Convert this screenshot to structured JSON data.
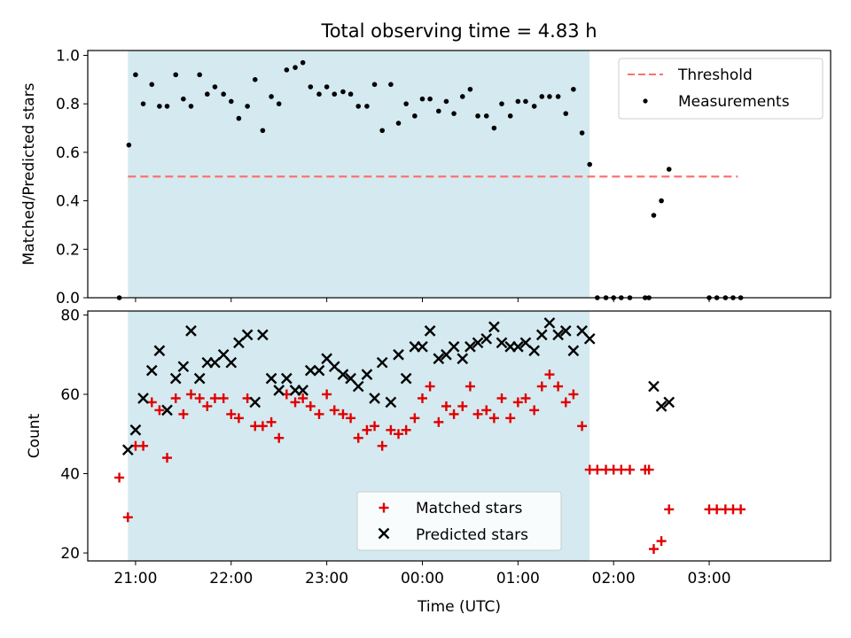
{
  "title": "Total observing time = 4.83 h",
  "colors": {
    "shade": "#d4eaf0",
    "threshold": "#ff7070",
    "measurements": "#000000",
    "matched": "#e00000",
    "predicted": "#000000"
  },
  "x_ticks": [
    {
      "t": 21,
      "label": "21:00"
    },
    {
      "t": 22,
      "label": "22:00"
    },
    {
      "t": 23,
      "label": "23:00"
    },
    {
      "t": 24,
      "label": "00:00"
    },
    {
      "t": 25,
      "label": "01:00"
    },
    {
      "t": 26,
      "label": "02:00"
    },
    {
      "t": 27,
      "label": "03:00"
    }
  ],
  "chart_data": [
    {
      "type": "scatter",
      "ylabel": "Matched/Predicted stars",
      "xlim_hours": [
        20.5,
        28.27
      ],
      "ylim": [
        0,
        1.02
      ],
      "y_ticks": [
        "0.0",
        "0.2",
        "0.4",
        "0.6",
        "0.8",
        "1.0"
      ],
      "shaded_span_hours": [
        20.92,
        25.75
      ],
      "legend": {
        "position": "upper-right",
        "threshold_label": "Threshold",
        "measurements_label": "Measurements"
      },
      "threshold": {
        "value": 0.5,
        "x_hours": [
          20.92,
          27.3
        ]
      },
      "measurements_hours": [
        [
          20.83,
          0.0
        ],
        [
          20.93,
          0.63
        ],
        [
          21.0,
          0.92
        ],
        [
          21.08,
          0.8
        ],
        [
          21.17,
          0.88
        ],
        [
          21.25,
          0.79
        ],
        [
          21.33,
          0.79
        ],
        [
          21.42,
          0.92
        ],
        [
          21.5,
          0.82
        ],
        [
          21.58,
          0.79
        ],
        [
          21.67,
          0.92
        ],
        [
          21.75,
          0.84
        ],
        [
          21.83,
          0.87
        ],
        [
          21.92,
          0.84
        ],
        [
          22.0,
          0.81
        ],
        [
          22.08,
          0.74
        ],
        [
          22.17,
          0.79
        ],
        [
          22.25,
          0.9
        ],
        [
          22.33,
          0.69
        ],
        [
          22.42,
          0.83
        ],
        [
          22.5,
          0.8
        ],
        [
          22.58,
          0.94
        ],
        [
          22.67,
          0.95
        ],
        [
          22.75,
          0.97
        ],
        [
          22.83,
          0.87
        ],
        [
          22.92,
          0.84
        ],
        [
          23.0,
          0.87
        ],
        [
          23.08,
          0.84
        ],
        [
          23.17,
          0.85
        ],
        [
          23.25,
          0.84
        ],
        [
          23.33,
          0.79
        ],
        [
          23.42,
          0.79
        ],
        [
          23.5,
          0.88
        ],
        [
          23.58,
          0.69
        ],
        [
          23.67,
          0.88
        ],
        [
          23.75,
          0.72
        ],
        [
          23.83,
          0.8
        ],
        [
          23.92,
          0.75
        ],
        [
          24.0,
          0.82
        ],
        [
          24.08,
          0.82
        ],
        [
          24.17,
          0.77
        ],
        [
          24.25,
          0.81
        ],
        [
          24.33,
          0.76
        ],
        [
          24.42,
          0.83
        ],
        [
          24.5,
          0.86
        ],
        [
          24.58,
          0.75
        ],
        [
          24.67,
          0.75
        ],
        [
          24.75,
          0.7
        ],
        [
          24.83,
          0.8
        ],
        [
          24.92,
          0.75
        ],
        [
          25.0,
          0.81
        ],
        [
          25.08,
          0.81
        ],
        [
          25.17,
          0.79
        ],
        [
          25.25,
          0.83
        ],
        [
          25.33,
          0.83
        ],
        [
          25.42,
          0.83
        ],
        [
          25.5,
          0.76
        ],
        [
          25.58,
          0.86
        ],
        [
          25.67,
          0.68
        ],
        [
          25.75,
          0.55
        ],
        [
          25.83,
          0.0
        ],
        [
          25.92,
          0.0
        ],
        [
          26.0,
          0.0
        ],
        [
          26.08,
          0.0
        ],
        [
          26.17,
          0.0
        ],
        [
          26.33,
          0.0
        ],
        [
          26.37,
          0.0
        ],
        [
          26.42,
          0.34
        ],
        [
          26.5,
          0.4
        ],
        [
          26.58,
          0.53
        ],
        [
          27.0,
          0.0
        ],
        [
          27.08,
          0.0
        ],
        [
          27.17,
          0.0
        ],
        [
          27.25,
          0.0
        ],
        [
          27.33,
          0.0
        ]
      ]
    },
    {
      "type": "scatter",
      "xlabel": "Time (UTC)",
      "ylabel": "Count",
      "xlim_hours": [
        20.5,
        28.27
      ],
      "ylim": [
        18,
        81
      ],
      "y_ticks": [
        "20",
        "40",
        "60",
        "80"
      ],
      "shaded_span_hours": [
        20.92,
        25.75
      ],
      "legend": {
        "position": "lower-center"
      },
      "series": [
        {
          "name": "Matched stars",
          "marker": "plus",
          "points_hours": [
            [
              20.83,
              39
            ],
            [
              20.92,
              29
            ],
            [
              21.0,
              47
            ],
            [
              21.08,
              47
            ],
            [
              21.17,
              58
            ],
            [
              21.25,
              56
            ],
            [
              21.33,
              44
            ],
            [
              21.42,
              59
            ],
            [
              21.5,
              55
            ],
            [
              21.58,
              60
            ],
            [
              21.67,
              59
            ],
            [
              21.75,
              57
            ],
            [
              21.83,
              59
            ],
            [
              21.92,
              59
            ],
            [
              22.0,
              55
            ],
            [
              22.08,
              54
            ],
            [
              22.17,
              59
            ],
            [
              22.25,
              52
            ],
            [
              22.33,
              52
            ],
            [
              22.42,
              53
            ],
            [
              22.5,
              49
            ],
            [
              22.58,
              60
            ],
            [
              22.67,
              58
            ],
            [
              22.75,
              59
            ],
            [
              22.83,
              57
            ],
            [
              22.92,
              55
            ],
            [
              23.0,
              60
            ],
            [
              23.08,
              56
            ],
            [
              23.17,
              55
            ],
            [
              23.25,
              54
            ],
            [
              23.33,
              49
            ],
            [
              23.42,
              51
            ],
            [
              23.5,
              52
            ],
            [
              23.58,
              47
            ],
            [
              23.67,
              51
            ],
            [
              23.75,
              50
            ],
            [
              23.83,
              51
            ],
            [
              23.92,
              54
            ],
            [
              24.0,
              59
            ],
            [
              24.08,
              62
            ],
            [
              24.17,
              53
            ],
            [
              24.25,
              57
            ],
            [
              24.33,
              55
            ],
            [
              24.42,
              57
            ],
            [
              24.5,
              62
            ],
            [
              24.58,
              55
            ],
            [
              24.67,
              56
            ],
            [
              24.75,
              54
            ],
            [
              24.83,
              59
            ],
            [
              24.92,
              54
            ],
            [
              25.0,
              58
            ],
            [
              25.08,
              59
            ],
            [
              25.17,
              56
            ],
            [
              25.25,
              62
            ],
            [
              25.33,
              65
            ],
            [
              25.42,
              62
            ],
            [
              25.5,
              58
            ],
            [
              25.58,
              60
            ],
            [
              25.67,
              52
            ],
            [
              25.75,
              41
            ],
            [
              25.83,
              41
            ],
            [
              25.92,
              41
            ],
            [
              26.0,
              41
            ],
            [
              26.08,
              41
            ],
            [
              26.17,
              41
            ],
            [
              26.33,
              41
            ],
            [
              26.37,
              41
            ],
            [
              26.42,
              21
            ],
            [
              26.5,
              23
            ],
            [
              26.58,
              31
            ],
            [
              27.0,
              31
            ],
            [
              27.08,
              31
            ],
            [
              27.17,
              31
            ],
            [
              27.25,
              31
            ],
            [
              27.33,
              31
            ]
          ]
        },
        {
          "name": "Predicted stars",
          "marker": "x",
          "points_hours": [
            [
              20.92,
              46
            ],
            [
              21.0,
              51
            ],
            [
              21.08,
              59
            ],
            [
              21.17,
              66
            ],
            [
              21.25,
              71
            ],
            [
              21.33,
              56
            ],
            [
              21.42,
              64
            ],
            [
              21.5,
              67
            ],
            [
              21.58,
              76
            ],
            [
              21.67,
              64
            ],
            [
              21.75,
              68
            ],
            [
              21.83,
              68
            ],
            [
              21.92,
              70
            ],
            [
              22.0,
              68
            ],
            [
              22.08,
              73
            ],
            [
              22.17,
              75
            ],
            [
              22.25,
              58
            ],
            [
              22.33,
              75
            ],
            [
              22.42,
              64
            ],
            [
              22.5,
              61
            ],
            [
              22.58,
              64
            ],
            [
              22.67,
              61
            ],
            [
              22.75,
              61
            ],
            [
              22.83,
              66
            ],
            [
              22.92,
              66
            ],
            [
              23.0,
              69
            ],
            [
              23.08,
              67
            ],
            [
              23.17,
              65
            ],
            [
              23.25,
              64
            ],
            [
              23.33,
              62
            ],
            [
              23.42,
              65
            ],
            [
              23.5,
              59
            ],
            [
              23.58,
              68
            ],
            [
              23.67,
              58
            ],
            [
              23.75,
              70
            ],
            [
              23.83,
              64
            ],
            [
              23.92,
              72
            ],
            [
              24.0,
              72
            ],
            [
              24.08,
              76
            ],
            [
              24.17,
              69
            ],
            [
              24.25,
              70
            ],
            [
              24.33,
              72
            ],
            [
              24.42,
              69
            ],
            [
              24.5,
              72
            ],
            [
              24.58,
              73
            ],
            [
              24.67,
              74
            ],
            [
              24.75,
              77
            ],
            [
              24.83,
              73
            ],
            [
              24.92,
              72
            ],
            [
              25.0,
              72
            ],
            [
              25.08,
              73
            ],
            [
              25.17,
              71
            ],
            [
              25.25,
              75
            ],
            [
              25.33,
              78
            ],
            [
              25.42,
              75
            ],
            [
              25.5,
              76
            ],
            [
              25.58,
              71
            ],
            [
              25.67,
              76
            ],
            [
              25.75,
              74
            ],
            [
              26.42,
              62
            ],
            [
              26.5,
              57
            ],
            [
              26.58,
              58
            ]
          ]
        }
      ]
    }
  ]
}
